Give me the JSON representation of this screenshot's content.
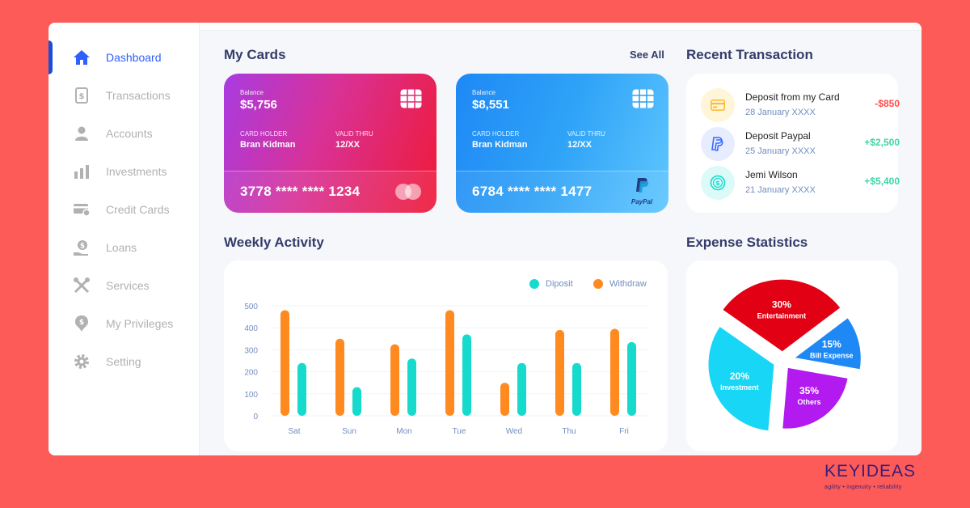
{
  "sidebar": {
    "items": [
      {
        "label": "Dashboard",
        "icon": "home-icon"
      },
      {
        "label": "Transactions",
        "icon": "transactions-icon"
      },
      {
        "label": "Accounts",
        "icon": "user-icon"
      },
      {
        "label": "Investments",
        "icon": "investments-icon"
      },
      {
        "label": "Credit Cards",
        "icon": "credit-card-icon"
      },
      {
        "label": "Loans",
        "icon": "loan-icon"
      },
      {
        "label": "Services",
        "icon": "tools-icon"
      },
      {
        "label": "My Privileges",
        "icon": "privileges-icon"
      },
      {
        "label": "Setting",
        "icon": "gear-icon"
      }
    ],
    "active_index": 0
  },
  "my_cards": {
    "title": "My Cards",
    "see_all": "See All",
    "cards": [
      {
        "balance_label": "Balance",
        "balance": "$5,756",
        "holder_label": "CARD HOLDER",
        "holder": "Bran Kidman",
        "valid_label": "VALID THRU",
        "valid": "12/XX",
        "number": "3778 **** **** 1234",
        "network": "mastercard"
      },
      {
        "balance_label": "Balance",
        "balance": "$8,551",
        "holder_label": "CARD HOLDER",
        "holder": "Bran Kidman",
        "valid_label": "VALID THRU",
        "valid": "12/XX",
        "number": "6784 **** **** 1477",
        "network": "PayPal"
      }
    ]
  },
  "recent": {
    "title": "Recent Transaction",
    "items": [
      {
        "name": "Deposit from my Card",
        "date": "28 January XXXX",
        "amount": "-$850",
        "icon": "card-icon"
      },
      {
        "name": "Deposit Paypal",
        "date": "25 January XXXX",
        "amount": "+$2,500",
        "icon": "paypal-icon"
      },
      {
        "name": "Jemi Wilson",
        "date": "21 January XXXX",
        "amount": "+$5,400",
        "icon": "dollar-icon"
      }
    ]
  },
  "weekly": {
    "title": "Weekly Activity",
    "legend": [
      "Diposit",
      "Withdraw"
    ]
  },
  "expense": {
    "title": "Expense Statistics"
  },
  "brand": {
    "logo": "KEYIDEAS",
    "tagline": "agility  •  ingenuity  •  reliability"
  },
  "colors": {
    "deposit": "#16DBCC",
    "withdraw": "#FF8A1F",
    "negative": "#FF4B4A",
    "positive": "#41D4A8",
    "active": "#2D60FF"
  },
  "chart_data": [
    {
      "type": "bar",
      "title": "Weekly Activity",
      "categories": [
        "Sat",
        "Sun",
        "Mon",
        "Tue",
        "Wed",
        "Thu",
        "Fri"
      ],
      "series": [
        {
          "name": "Withdraw",
          "values": [
            480,
            350,
            325,
            480,
            150,
            390,
            395
          ]
        },
        {
          "name": "Diposit",
          "values": [
            240,
            130,
            260,
            370,
            240,
            240,
            335
          ]
        }
      ],
      "yticks": [
        0,
        100,
        200,
        300,
        400,
        500
      ],
      "ylim": [
        0,
        500
      ],
      "legend": "top-right"
    },
    {
      "type": "pie",
      "title": "Expense Statistics",
      "slices": [
        {
          "label": "Entertainment",
          "value": 30,
          "text": "30%",
          "color": "#E10014"
        },
        {
          "label": "Bill Expense",
          "value": 15,
          "text": "15%",
          "color": "#1E88F5"
        },
        {
          "label": "Others",
          "value": 35,
          "text": "35%",
          "color": "#B21AF0"
        },
        {
          "label": "Investment",
          "value": 20,
          "text": "20%",
          "color": "#18D6F5"
        }
      ]
    }
  ]
}
